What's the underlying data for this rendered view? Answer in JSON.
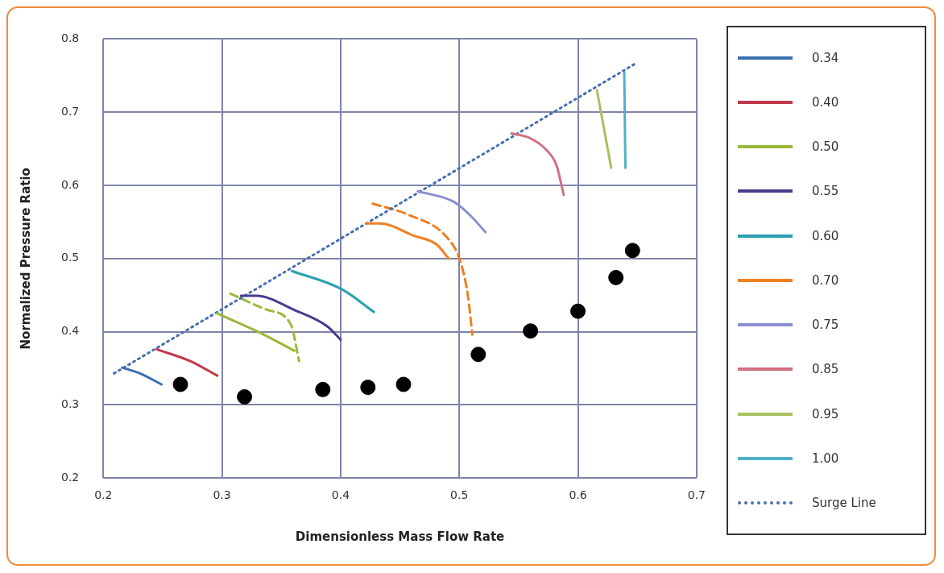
{
  "chart_data": {
    "type": "line",
    "xlabel": "Dimensionless Mass Flow Rate",
    "ylabel": "Normalized Pressure Ratio",
    "xlim": [
      0.2,
      0.7
    ],
    "xticks": [
      0.2,
      0.3,
      0.4,
      0.5,
      0.6,
      0.7
    ],
    "ylim": [
      0.2,
      0.8
    ],
    "yticks": [
      0.2,
      0.3,
      0.4,
      0.5,
      0.6,
      0.7,
      0.8
    ],
    "grid": true,
    "legend": "right",
    "marker": "none",
    "series": [
      {
        "name": "0.34",
        "color": "#3a6fb0",
        "x": [
          0.216,
          0.231,
          0.249
        ],
        "values": [
          0.351,
          0.343,
          0.328
        ]
      },
      {
        "name": "0.40",
        "color": "#c0394a",
        "x": [
          0.245,
          0.273,
          0.296
        ],
        "values": [
          0.376,
          0.36,
          0.34
        ]
      },
      {
        "name": "0.50",
        "color": "#9ab93a",
        "x": [
          0.296,
          0.329,
          0.361
        ],
        "values": [
          0.425,
          0.401,
          0.374
        ]
      },
      {
        "name": "0.55",
        "color": "#4a3d8f",
        "x": [
          0.316,
          0.329,
          0.362,
          0.389,
          0.4
        ],
        "values": [
          0.449,
          0.449,
          0.429,
          0.407,
          0.389
        ]
      },
      {
        "name": "0.60",
        "color": "#2aa0b0",
        "x": [
          0.359,
          0.401,
          0.428
        ],
        "values": [
          0.483,
          0.458,
          0.427
        ]
      },
      {
        "name": "0.70",
        "color": "#f07f20",
        "x": [
          0.422,
          0.433,
          0.462,
          0.481,
          0.491
        ],
        "values": [
          0.548,
          0.548,
          0.531,
          0.519,
          0.5
        ]
      },
      {
        "name": "0.75",
        "color": "#8a8fd0",
        "x": [
          0.465,
          0.496,
          0.511,
          0.522
        ],
        "values": [
          0.592,
          0.577,
          0.556,
          0.536
        ]
      },
      {
        "name": "0.85",
        "color": "#d07080",
        "x": [
          0.544,
          0.559,
          0.573,
          0.582,
          0.588
        ],
        "values": [
          0.671,
          0.665,
          0.649,
          0.627,
          0.587
        ]
      },
      {
        "name": "0.95",
        "color": "#a8c060",
        "x": [
          0.616,
          0.628
        ],
        "values": [
          0.73,
          0.624
        ]
      },
      {
        "name": "1.00",
        "color": "#50b0c8",
        "x": [
          0.639,
          0.64
        ],
        "values": [
          0.755,
          0.624
        ]
      },
      {
        "name": "Surge Line",
        "color": "#4a6fb0",
        "line_style": "dotted",
        "x": [
          0.209,
          0.649
        ],
        "values": [
          0.343,
          0.767
        ]
      },
      {
        "color": "#9ab93a",
        "line_style": "dashed",
        "x": [
          0.307,
          0.338,
          0.358,
          0.365
        ],
        "values": [
          0.452,
          0.43,
          0.41,
          0.36
        ]
      },
      {
        "color": "#f07f20",
        "line_style": "dashed",
        "x": [
          0.427,
          0.457,
          0.489,
          0.5,
          0.507,
          0.511
        ],
        "values": [
          0.575,
          0.56,
          0.53,
          0.5,
          0.452,
          0.396
        ]
      },
      {
        "type": "scatter",
        "marker": "circle",
        "color": "#000000",
        "x": [
          0.265,
          0.319,
          0.385,
          0.423,
          0.453,
          0.516,
          0.56,
          0.6,
          0.632,
          0.646
        ],
        "values": [
          0.328,
          0.311,
          0.321,
          0.324,
          0.328,
          0.369,
          0.401,
          0.428,
          0.474,
          0.511
        ]
      }
    ]
  }
}
